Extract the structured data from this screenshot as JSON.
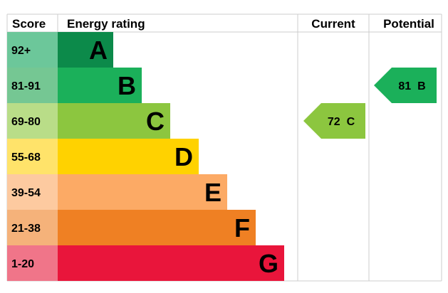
{
  "headers": {
    "score": "Score",
    "rating": "Energy rating",
    "current": "Current",
    "potential": "Potential"
  },
  "bands": [
    {
      "score": "92+",
      "letter": "A",
      "color": "#0c8a4a",
      "score_bg": "#6cc79a"
    },
    {
      "score": "81-91",
      "letter": "B",
      "color": "#1bb05a",
      "score_bg": "#75c793"
    },
    {
      "score": "69-80",
      "letter": "C",
      "color": "#8cc63f",
      "score_bg": "#b9dd88"
    },
    {
      "score": "55-68",
      "letter": "D",
      "color": "#ffd200",
      "score_bg": "#ffe36a"
    },
    {
      "score": "39-54",
      "letter": "E",
      "color": "#fcaa65",
      "score_bg": "#fdcaa0"
    },
    {
      "score": "21-38",
      "letter": "F",
      "color": "#ef8023",
      "score_bg": "#f5b27a"
    },
    {
      "score": "1-20",
      "letter": "G",
      "color": "#e9153b",
      "score_bg": "#f07589"
    }
  ],
  "current": {
    "value": 72,
    "letter": "C",
    "label": "72  C",
    "color": "#8cc63f"
  },
  "potential": {
    "value": 81,
    "letter": "B",
    "label": "81  B",
    "color": "#1bb05a"
  }
}
